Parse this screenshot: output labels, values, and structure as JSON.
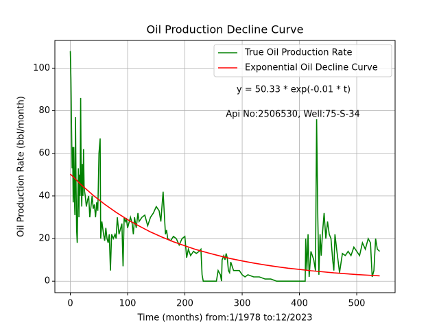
{
  "chart_data": {
    "type": "line",
    "title": "Oil Production Decline Curve",
    "x_label": "Time (months) from:1/1978 to:12/2023",
    "y_label": "Oil Production Rate (bbl/month)",
    "annotations": [
      "y = 50.33 * exp(-0.01 * t)",
      "Api No:2506530, Well:75-S-34"
    ],
    "xlim": [
      -27,
      567
    ],
    "ylim": [
      -5.4,
      113
    ],
    "xticks": [
      0,
      100,
      200,
      300,
      400,
      500
    ],
    "yticks": [
      0,
      20,
      40,
      60,
      80,
      100
    ],
    "grid": true,
    "legend": "upper right",
    "series": [
      {
        "name": "True Oil Production Rate",
        "color": "#008000",
        "x": [
          0,
          1,
          2,
          3,
          4,
          5,
          6,
          7,
          8,
          9,
          10,
          11,
          12,
          13,
          14,
          15,
          16,
          17,
          18,
          19,
          20,
          21,
          22,
          23,
          24,
          25,
          26,
          28,
          30,
          32,
          34,
          36,
          38,
          40,
          42,
          44,
          46,
          48,
          50,
          52,
          53,
          55,
          58,
          60,
          62,
          64,
          66,
          68,
          70,
          72,
          75,
          78,
          80,
          82,
          85,
          90,
          92,
          94,
          96,
          98,
          100,
          105,
          108,
          110,
          112,
          115,
          118,
          120,
          125,
          130,
          135,
          140,
          145,
          150,
          155,
          158,
          160,
          162,
          164,
          166,
          168,
          170,
          175,
          180,
          185,
          190,
          195,
          200,
          203,
          206,
          210,
          215,
          220,
          225,
          228,
          230,
          232,
          240,
          255,
          258,
          262,
          264,
          265,
          268,
          270,
          272,
          274,
          276,
          278,
          280,
          285,
          290,
          295,
          300,
          305,
          310,
          320,
          330,
          340,
          350,
          360,
          380,
          400,
          410,
          411,
          413,
          415,
          417,
          420,
          425,
          428,
          430,
          432,
          434,
          436,
          438,
          440,
          443,
          446,
          449,
          452,
          455,
          458,
          460,
          462,
          465,
          470,
          475,
          480,
          485,
          490,
          495,
          500,
          505,
          510,
          515,
          520,
          524,
          527,
          530,
          533,
          536,
          540
        ],
        "values": [
          108,
          95,
          75,
          53,
          63,
          37,
          63,
          40,
          31,
          77,
          45,
          24,
          18,
          38,
          53,
          30,
          50,
          40,
          86,
          45,
          35,
          55,
          40,
          62,
          45,
          42,
          40,
          35,
          38,
          40,
          30,
          35,
          40,
          34,
          36,
          30,
          37,
          33,
          60,
          67,
          20,
          28,
          22,
          19,
          25,
          20,
          18,
          22,
          5,
          22,
          20,
          22,
          20,
          30,
          22,
          27,
          7,
          30,
          28,
          29,
          25,
          30,
          27,
          22,
          30,
          25,
          32,
          28,
          30,
          31,
          26,
          30,
          32,
          35,
          33,
          28,
          35,
          42,
          32,
          22,
          24,
          20,
          19,
          21,
          20,
          17,
          20,
          21,
          11,
          15,
          12,
          14,
          13,
          14,
          15,
          3,
          0,
          0,
          0,
          5,
          3,
          0,
          10,
          12,
          10,
          13,
          11,
          5,
          4,
          9,
          5,
          5,
          5,
          3,
          2,
          3,
          2,
          2,
          1,
          1,
          0,
          0,
          0,
          0,
          20,
          5,
          22,
          2,
          14,
          10,
          5,
          76,
          30,
          3,
          22,
          12,
          22,
          32,
          20,
          28,
          22,
          20,
          10,
          5,
          22,
          15,
          4,
          13,
          12,
          14,
          12,
          16,
          14,
          12,
          18,
          15,
          20,
          18,
          2,
          5,
          20,
          15,
          14
        ]
      },
      {
        "name": "Exponential Oil Decline Curve",
        "color": "#ff0000",
        "x": [
          0,
          20,
          40,
          60,
          80,
          100,
          120,
          140,
          160,
          180,
          200,
          220,
          240,
          260,
          280,
          300,
          320,
          340,
          360,
          380,
          400,
          420,
          440,
          460,
          480,
          500,
          520,
          540
        ],
        "values": [
          50.3,
          45.0,
          40.3,
          36.1,
          32.3,
          28.9,
          25.9,
          23.1,
          20.7,
          18.5,
          16.6,
          14.8,
          13.3,
          11.9,
          10.6,
          9.5,
          8.5,
          7.6,
          6.8,
          6.1,
          5.5,
          4.9,
          4.4,
          3.9,
          3.5,
          3.1,
          2.8,
          2.5
        ]
      }
    ]
  }
}
